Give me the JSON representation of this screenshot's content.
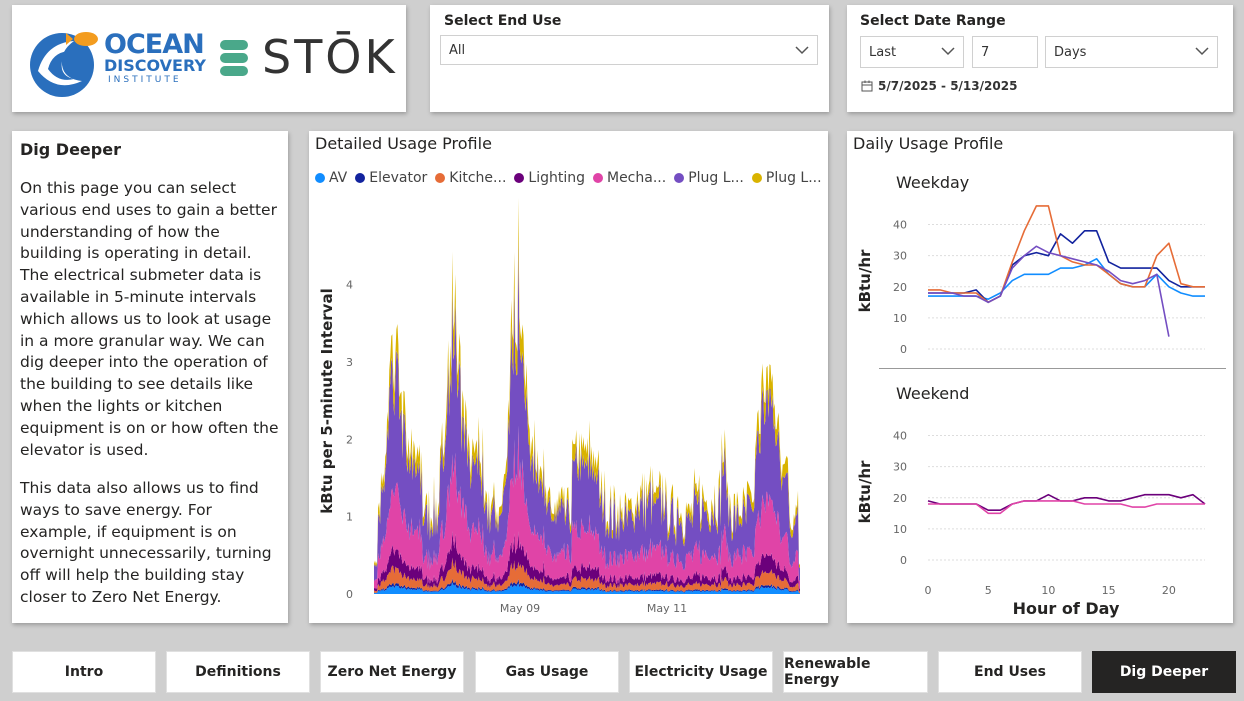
{
  "logos": {
    "ocean_line1": "OCEAN",
    "ocean_line2": "DISCOVERY",
    "ocean_line3": "INSTITUTE",
    "stok": "STŌK"
  },
  "end_use_filter": {
    "label": "Select End Use",
    "value": "All"
  },
  "date_filter": {
    "label": "Select Date Range",
    "mode": "Last",
    "count": "7",
    "unit": "Days",
    "range_text": "5/7/2025 - 5/13/2025"
  },
  "intro": {
    "title": "Dig Deeper",
    "para1": "On this page you can select various end uses to gain a better understanding of how the building is operating in detail. The electrical submeter data is available in 5-minute intervals which allows us to look at usage in a more granular way. We can dig deeper into the operation of the building to see details like when the lights or kitchen equipment is on or how often the elevator is used.",
    "para2": "This data also allows us to find ways to save energy. For example, if equipment is on overnight unnecessarily, turning off will help the building stay closer to Zero Net Energy."
  },
  "detailed": {
    "title": "Detailed Usage Profile",
    "legend": [
      {
        "name": "AV",
        "color": "#118dff"
      },
      {
        "name": "Elevator",
        "color": "#12239e"
      },
      {
        "name": "Kitche...",
        "color": "#e66c37"
      },
      {
        "name": "Lighting",
        "color": "#6b007b"
      },
      {
        "name": "Mecha...",
        "color": "#e044a7"
      },
      {
        "name": "Plug L...",
        "color": "#744ec2"
      },
      {
        "name": "Plug L...",
        "color": "#d9b300"
      }
    ]
  },
  "daily": {
    "title": "Daily Usage Profile",
    "weekday_label": "Weekday",
    "weekend_label": "Weekend"
  },
  "nav": {
    "items": [
      "Intro",
      "Definitions",
      "Zero Net Energy",
      "Gas Usage",
      "Electricity Usage",
      "Renewable Energy",
      "End Uses",
      "Dig Deeper"
    ],
    "active": "Dig Deeper"
  },
  "chart_data": [
    {
      "type": "area",
      "title": "Detailed Usage Profile",
      "ylabel": "kBtu per 5-minute Interval",
      "ylim": [
        0,
        4.5
      ],
      "yticks": [
        0,
        1,
        2,
        3,
        4
      ],
      "xticks": [
        "May 09",
        "May 11"
      ],
      "stacked": true,
      "x_range": [
        "2025-05-07",
        "2025-05-13"
      ],
      "series": [
        {
          "name": "AV",
          "color": "#118dff",
          "approx_level": 0.06
        },
        {
          "name": "Elevator",
          "color": "#12239e",
          "approx_level": 0.02
        },
        {
          "name": "Kitche...",
          "color": "#e66c37",
          "approx_level": 0.12
        },
        {
          "name": "Lighting",
          "color": "#6b007b",
          "approx_level": 0.15
        },
        {
          "name": "Mecha...",
          "color": "#e044a7",
          "approx_level": 0.5
        },
        {
          "name": "Plug L...",
          "color": "#744ec2",
          "approx_level": 0.9
        },
        {
          "name": "Plug L...",
          "color": "#d9b300",
          "approx_level": 0.2
        }
      ],
      "peaks": [
        {
          "x": "2025-05-07",
          "y": 3.6
        },
        {
          "x": "2025-05-08",
          "y": 4.3
        },
        {
          "x": "2025-05-09",
          "y": 4.7
        },
        {
          "x": "2025-05-13",
          "y": 3.2
        }
      ]
    },
    {
      "type": "line",
      "title": "Weekday",
      "xlabel": "",
      "ylabel": "kBtu/hr",
      "ylim": [
        0,
        45
      ],
      "yticks": [
        0,
        10,
        20,
        30,
        40
      ],
      "x": [
        0,
        1,
        2,
        3,
        4,
        5,
        6,
        7,
        8,
        9,
        10,
        11,
        12,
        13,
        14,
        15,
        16,
        17,
        18,
        19,
        20,
        21,
        22,
        23
      ],
      "series": [
        {
          "color": "#118dff",
          "values": [
            17,
            17,
            17,
            17,
            17,
            16,
            18,
            22,
            24,
            24,
            24,
            26,
            26,
            27,
            29,
            24,
            21,
            20,
            20,
            24,
            20,
            18,
            17,
            17
          ]
        },
        {
          "color": "#12239e",
          "values": [
            18,
            18,
            18,
            18,
            19,
            15,
            17,
            27,
            30,
            31,
            30,
            37,
            34,
            38,
            38,
            28,
            26,
            26,
            26,
            26,
            22,
            20,
            20,
            20
          ]
        },
        {
          "color": "#e66c37",
          "values": [
            19,
            19,
            18,
            18,
            18,
            15,
            17,
            28,
            38,
            46,
            46,
            30,
            28,
            27,
            27,
            24,
            21,
            20,
            20,
            30,
            34,
            21,
            20,
            20
          ]
        },
        {
          "color": "#744ec2",
          "values": [
            18,
            18,
            18,
            17,
            17,
            15,
            17,
            26,
            30,
            33,
            31,
            30,
            29,
            28,
            27,
            25,
            22,
            21,
            22,
            24,
            4,
            null,
            null,
            null
          ]
        }
      ]
    },
    {
      "type": "line",
      "title": "Weekend",
      "xlabel": "Hour of Day",
      "ylabel": "kBtu/hr",
      "ylim": [
        0,
        45
      ],
      "yticks": [
        0,
        10,
        20,
        30,
        40
      ],
      "xticks": [
        0,
        5,
        10,
        15,
        20
      ],
      "x": [
        0,
        1,
        2,
        3,
        4,
        5,
        6,
        7,
        8,
        9,
        10,
        11,
        12,
        13,
        14,
        15,
        16,
        17,
        18,
        19,
        20,
        21,
        22,
        23
      ],
      "series": [
        {
          "color": "#6b007b",
          "values": [
            19,
            18,
            18,
            18,
            18,
            16,
            16,
            18,
            19,
            19,
            21,
            19,
            19,
            20,
            20,
            19,
            19,
            20,
            21,
            21,
            21,
            20,
            21,
            18
          ]
        },
        {
          "color": "#e044a7",
          "values": [
            18,
            18,
            18,
            18,
            18,
            15,
            15,
            18,
            19,
            19,
            19,
            19,
            19,
            18,
            18,
            18,
            18,
            17,
            17,
            18,
            18,
            18,
            18,
            18
          ]
        }
      ]
    }
  ]
}
